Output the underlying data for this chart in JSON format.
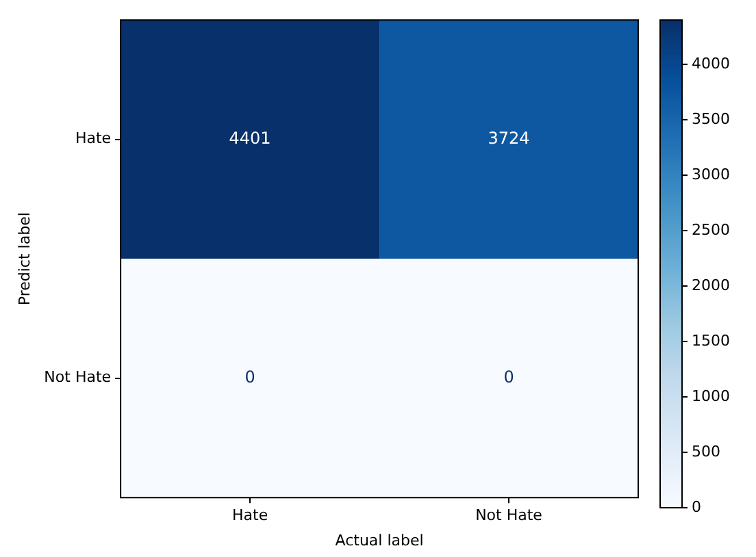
{
  "chart_data": {
    "type": "heatmap",
    "xlabel": "Actual label",
    "ylabel": "Predict label",
    "categories": [
      "Hate",
      "Not Hate"
    ],
    "y_categories": [
      "Hate",
      "Not Hate"
    ],
    "cells": [
      [
        4401,
        3724
      ],
      [
        0,
        0
      ]
    ],
    "clim": [
      0,
      4401
    ],
    "cticks": [
      0,
      500,
      1000,
      1500,
      2000,
      2500,
      3000,
      3500,
      4000
    ],
    "data_labels": true
  }
}
